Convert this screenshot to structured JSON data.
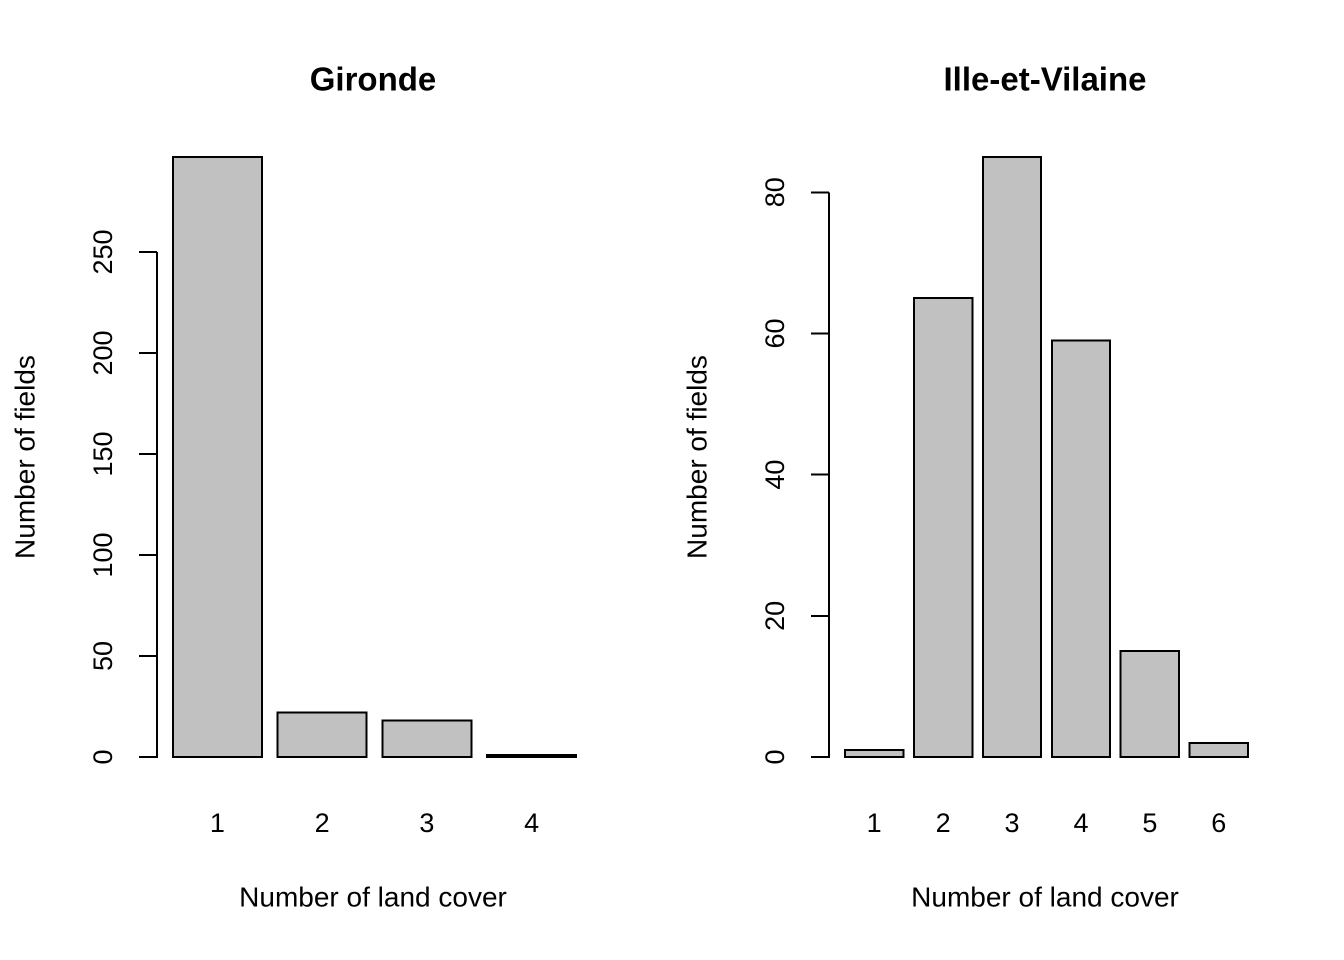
{
  "figure": {
    "background": "#FFFFFF",
    "colors": {
      "bar_fill": "#C1C1C1",
      "bar_border": "#000000",
      "axis": "#000000",
      "text": "#000000"
    }
  },
  "chart_data": [
    {
      "type": "bar",
      "title": "Gironde",
      "xlabel": "Number of land cover",
      "ylabel": "Number of fields",
      "categories": [
        "1",
        "2",
        "3",
        "4"
      ],
      "values": [
        297,
        22,
        18,
        1
      ],
      "yticks": [
        0,
        50,
        100,
        150,
        200,
        250
      ],
      "ylim": [
        0,
        297
      ],
      "grid": false,
      "legend": null,
      "bar_fill": "#C1C1C1",
      "bar_border": "#000000"
    },
    {
      "type": "bar",
      "title": "Ille-et-Vilaine",
      "xlabel": "Number of land cover",
      "ylabel": "Number of fields",
      "categories": [
        "1",
        "2",
        "3",
        "4",
        "5",
        "6"
      ],
      "values": [
        1,
        65,
        85,
        59,
        15,
        2
      ],
      "yticks": [
        0,
        20,
        40,
        60,
        80
      ],
      "ylim": [
        0,
        85
      ],
      "grid": false,
      "legend": null,
      "bar_fill": "#C1C1C1",
      "bar_border": "#000000"
    }
  ]
}
